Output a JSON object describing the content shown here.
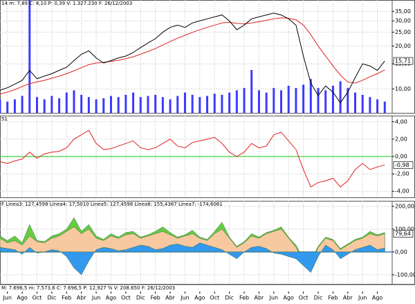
{
  "x_axis": {
    "x": [
      0,
      1,
      2,
      3,
      4,
      5,
      6,
      7,
      8,
      9,
      10,
      11,
      12,
      13,
      14,
      15,
      16,
      17,
      18,
      19,
      20,
      21,
      22,
      23,
      24,
      25,
      26,
      27,
      28,
      29,
      30,
      31,
      32,
      33,
      34,
      35,
      36,
      37,
      38,
      39,
      40,
      41,
      42,
      43,
      44,
      45,
      46,
      47,
      48,
      49,
      50,
      51,
      52
    ],
    "xlim": [
      0,
      53
    ],
    "xticks": [
      {
        "value": 1,
        "label": "Jun"
      },
      {
        "value": 3,
        "label": "Ago"
      },
      {
        "value": 5,
        "label": "Oct"
      },
      {
        "value": 7,
        "label": "Dic"
      },
      {
        "value": 9,
        "label": "Feb"
      },
      {
        "value": 11,
        "label": "Abr"
      },
      {
        "value": 13,
        "label": "Jun"
      },
      {
        "value": 15,
        "label": "Ago"
      },
      {
        "value": 17,
        "label": "Oct"
      },
      {
        "value": 19,
        "label": "Dic"
      },
      {
        "value": 21,
        "label": "Feb"
      },
      {
        "value": 23,
        "label": "Abr"
      },
      {
        "value": 25,
        "label": "Jun"
      },
      {
        "value": 27,
        "label": "Ago"
      },
      {
        "value": 29,
        "label": "Oct"
      },
      {
        "value": 31,
        "label": "Dic"
      },
      {
        "value": 33,
        "label": "Feb"
      },
      {
        "value": 35,
        "label": "Abr"
      },
      {
        "value": 37,
        "label": "Jun"
      },
      {
        "value": 39,
        "label": "Ago"
      },
      {
        "value": 41,
        "label": "Oct"
      },
      {
        "value": 43,
        "label": "Dic"
      },
      {
        "value": 45,
        "label": "Feb"
      },
      {
        "value": 47,
        "label": "Abr"
      },
      {
        "value": 49,
        "label": "Jun"
      },
      {
        "value": 51,
        "label": "Ago"
      }
    ],
    "footnote": "M: 7.696,5  m: 7.573,6  C: 7.696,5  P: 12,927 %  V: 208.650  F: 26/12/2003"
  },
  "chart_data": [
    {
      "type": "line",
      "title": "14  m: 7,89  C: 8,10  P: 0,39  V: 1.327.230  F: 26/12/2003",
      "title_color": "#000000",
      "log_scale": true,
      "ylim": [
        6.8,
        42
      ],
      "yticks": [
        {
          "value": 10,
          "label": "10,00"
        },
        {
          "value": 15,
          "label": "15,00"
        },
        {
          "value": 20,
          "label": "20,00"
        },
        {
          "value": 25,
          "label": "25,00"
        },
        {
          "value": 30,
          "label": "30,00"
        },
        {
          "value": 35,
          "label": "35,00"
        }
      ],
      "y2lim": [
        0,
        100
      ],
      "series": [
        {
          "type": "bar",
          "axis": "y2",
          "color": "#3a3aff",
          "values": [
            12,
            10,
            12,
            15,
            100,
            14,
            12,
            15,
            13,
            18,
            20,
            16,
            14,
            12,
            13,
            15,
            14,
            16,
            18,
            14,
            15,
            16,
            14,
            12,
            15,
            18,
            16,
            14,
            15,
            17,
            16,
            18,
            20,
            22,
            38,
            20,
            18,
            22,
            20,
            24,
            22,
            25,
            30,
            22,
            20,
            24,
            28,
            22,
            18,
            16,
            14,
            12,
            10
          ]
        },
        {
          "type": "line",
          "color": "#e02020",
          "values": [
            9.2,
            9.5,
            9.9,
            10.4,
            10.9,
            11.2,
            11.5,
            11.9,
            12.3,
            12.8,
            13.4,
            14.1,
            14.8,
            15.2,
            15.4,
            15.6,
            15.9,
            16.3,
            16.8,
            17.5,
            18.3,
            19.2,
            20.3,
            21.5,
            22.7,
            23.8,
            24.9,
            26,
            27,
            28,
            29,
            29.3,
            28.8,
            28.6,
            29,
            29.6,
            30.3,
            31,
            31.5,
            31.3,
            30.5,
            28,
            24,
            20,
            17,
            14.5,
            12.5,
            11.2,
            11,
            11.5,
            12.2,
            12.8,
            13.6
          ]
        },
        {
          "type": "line",
          "color": "#000000",
          "end_label": "15,71",
          "values": [
            9.8,
            10.2,
            10.8,
            11.5,
            13.5,
            11.8,
            12.3,
            12.8,
            13.5,
            14.2,
            15.8,
            17.5,
            18.5,
            16.5,
            15.2,
            15.8,
            16.5,
            17,
            18,
            19.5,
            21,
            22.5,
            25,
            27,
            28,
            27,
            29,
            30,
            31,
            32,
            33,
            30,
            26,
            28,
            31,
            32,
            33,
            34,
            33,
            31,
            28,
            17,
            11,
            9,
            10.5,
            9.5,
            8,
            9.5,
            12,
            15,
            14.5,
            13.5,
            15.71
          ]
        }
      ]
    },
    {
      "type": "line",
      "title": "51",
      "title_color": "#e02020",
      "ylim": [
        -4.7,
        4.7
      ],
      "yticks": [
        {
          "value": 4,
          "label": "4,00"
        },
        {
          "value": 2,
          "label": "2,00"
        },
        {
          "value": 0,
          "label": "0,00"
        },
        {
          "value": -2,
          "label": "-2,00"
        },
        {
          "value": -4,
          "label": "-4,00"
        }
      ],
      "hline": 0,
      "hline_color": "#40d040",
      "series": [
        {
          "type": "line",
          "color": "#e02020",
          "end_label": "-0,98",
          "values": [
            -0.6,
            -0.8,
            -0.5,
            -0.3,
            0.5,
            -0.2,
            0.3,
            0.5,
            0.6,
            1,
            2,
            2.5,
            3,
            1.5,
            0.8,
            0.9,
            1.2,
            1.5,
            1.8,
            1,
            0.8,
            1,
            1.5,
            2,
            1.2,
            1,
            1.6,
            1.8,
            2,
            2.2,
            1.5,
            0.5,
            0,
            0.5,
            1.5,
            1,
            1.2,
            2.5,
            2.8,
            1.8,
            0.8,
            -1.5,
            -3.5,
            -3,
            -2.8,
            -2.5,
            -3.5,
            -2.8,
            -1.5,
            -0.8,
            -1.5,
            -1.2,
            -0.98
          ]
        }
      ]
    },
    {
      "type": "area",
      "title": "F  Linea3: 127,4598  Linea4: 17,5010  Linea5: 127,4598  Linea6: 155,4367  Linea7: -174,6061",
      "title_color": "#000000",
      "ylim": [
        -140,
        224
      ],
      "yticks": [
        {
          "value": 200,
          "label": "200,00"
        },
        {
          "value": 100,
          "label": "100,00"
        },
        {
          "value": 0,
          "label": "0,00"
        },
        {
          "value": -100,
          "label": "-100,00"
        }
      ],
      "hline": 0,
      "hline_color": "#2060c0",
      "series": [
        {
          "type": "area",
          "color": "#66cc44",
          "values": [
            70,
            50,
            70,
            40,
            120,
            50,
            45,
            70,
            80,
            100,
            150,
            90,
            120,
            70,
            55,
            80,
            65,
            85,
            90,
            65,
            75,
            90,
            110,
            85,
            65,
            75,
            95,
            65,
            55,
            90,
            130,
            65,
            25,
            45,
            80,
            65,
            85,
            95,
            110,
            65,
            30,
            -30,
            -40,
            25,
            65,
            55,
            15,
            35,
            55,
            65,
            90,
            75,
            85
          ]
        },
        {
          "type": "area",
          "color": "#f8c9a0",
          "end_label": "79,64",
          "values": [
            60,
            40,
            50,
            30,
            70,
            45,
            40,
            60,
            70,
            90,
            110,
            80,
            100,
            60,
            50,
            70,
            60,
            75,
            80,
            60,
            70,
            80,
            90,
            75,
            60,
            70,
            80,
            60,
            50,
            80,
            100,
            60,
            20,
            40,
            70,
            60,
            80,
            90,
            100,
            60,
            20,
            -40,
            -60,
            20,
            60,
            50,
            10,
            30,
            50,
            60,
            80,
            70,
            79.64
          ]
        },
        {
          "type": "area",
          "color": "#3399ee",
          "values": [
            20,
            15,
            10,
            -10,
            20,
            -5,
            0,
            10,
            5,
            -20,
            -70,
            -100,
            -40,
            10,
            20,
            15,
            5,
            10,
            20,
            30,
            25,
            10,
            15,
            30,
            35,
            25,
            20,
            40,
            30,
            20,
            10,
            -10,
            -30,
            0,
            20,
            25,
            15,
            -5,
            -10,
            -20,
            -30,
            -60,
            -90,
            -20,
            30,
            10,
            -30,
            -10,
            10,
            20,
            30,
            10,
            17.5
          ]
        }
      ]
    }
  ]
}
